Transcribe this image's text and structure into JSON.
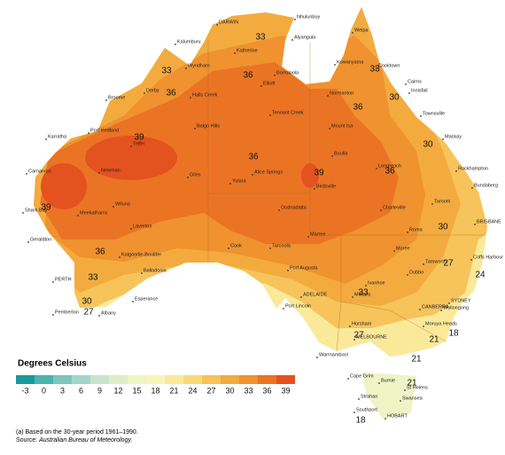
{
  "legend": {
    "title": "Degrees Celsius",
    "items": [
      {
        "label": "-3",
        "color": "#1a9a9a"
      },
      {
        "label": "0",
        "color": "#4db3ae"
      },
      {
        "label": "3",
        "color": "#7cc6be"
      },
      {
        "label": "6",
        "color": "#a3d6c8"
      },
      {
        "label": "9",
        "color": "#c6e4cc"
      },
      {
        "label": "12",
        "color": "#dcedc8"
      },
      {
        "label": "15",
        "color": "#eef4c4"
      },
      {
        "label": "18",
        "color": "#f7f5b9"
      },
      {
        "label": "21",
        "color": "#fbe99a"
      },
      {
        "label": "24",
        "color": "#f9d978"
      },
      {
        "label": "27",
        "color": "#f6c45b"
      },
      {
        "label": "30",
        "color": "#f3ab40"
      },
      {
        "label": "33",
        "color": "#ef922f"
      },
      {
        "label": "36",
        "color": "#ea7424"
      },
      {
        "label": "39",
        "color": "#e4521f"
      }
    ]
  },
  "contour_labels": [
    "33",
    "33",
    "36",
    "33",
    "36",
    "30",
    "36",
    "39",
    "30",
    "36",
    "39",
    "36",
    "39",
    "36",
    "33",
    "30",
    "27",
    "24",
    "33",
    "30",
    "27",
    "27",
    "21",
    "18",
    "21",
    "21",
    "18"
  ],
  "places": [
    "DARWIN",
    "Nhulunbuy",
    "Weipa",
    "Kalumburu",
    "Katherine",
    "Alyangula",
    "Wyndham",
    "Borroloola",
    "Kowanyama",
    "Cooktown",
    "Cairns",
    "Innisfail",
    "Derby",
    "Halls Creek",
    "Elliott",
    "Normanton",
    "Broome",
    "Tennant Creek",
    "Townsville",
    "Mackay",
    "Port Hedland",
    "Karratha",
    "Balgo Hills",
    "Mount Isa",
    "Telfer",
    "Boulia",
    "Longreach",
    "Rockhampton",
    "Newman",
    "Giles",
    "Alice Springs",
    "Yulara",
    "Birdsville",
    "Bundaberg",
    "Carnarvon",
    "Wiluna",
    "Meekatharra",
    "Taroom",
    "Charleville",
    "Oodnadatta",
    "Shark Bay",
    "BRISBANE",
    "Laverton",
    "Roma",
    "Marree",
    "Moree",
    "Geraldton",
    "Kalgoorlie-Boulder",
    "Cook",
    "Tarcoola",
    "Tamworth",
    "Coffs Harbour",
    "Dubbo",
    "Port Augusta",
    "Balladonia",
    "Esperance",
    "PERTH",
    "Pemberton",
    "Albany",
    "Port Lincoln",
    "ADELAIDE",
    "Mildura",
    "Ivanhoe",
    "CANBERRA",
    "SYDNEY",
    "Wollongong",
    "Moruya Heads",
    "Horsham",
    "MELBOURNE",
    "Warrnambool",
    "Cape Grim",
    "Burnie",
    "St Helens",
    "Strahan",
    "Swansea",
    "Southport",
    "HOBART"
  ],
  "notes": {
    "footnote": "(a) Based on the 30-year period 1961–1990.",
    "source_prefix": "Source:",
    "source": "Australian Bureau of Meteorology."
  }
}
